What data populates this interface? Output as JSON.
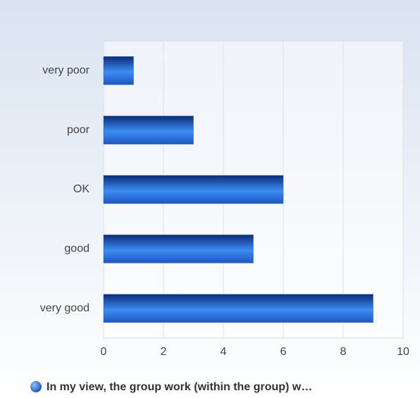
{
  "chart_data": {
    "type": "bar",
    "orientation": "horizontal",
    "categories": [
      "very poor",
      "poor",
      "OK",
      "good",
      "very good"
    ],
    "series": [
      {
        "name": "In my view, the group work (within the group) w…",
        "color": "#2f6fd8",
        "values": [
          1,
          3,
          6,
          5,
          9
        ]
      }
    ],
    "xlim": [
      0,
      10
    ],
    "xticks": [
      0,
      2,
      4,
      6,
      8,
      10
    ],
    "grid": true,
    "legend": "bottom"
  }
}
